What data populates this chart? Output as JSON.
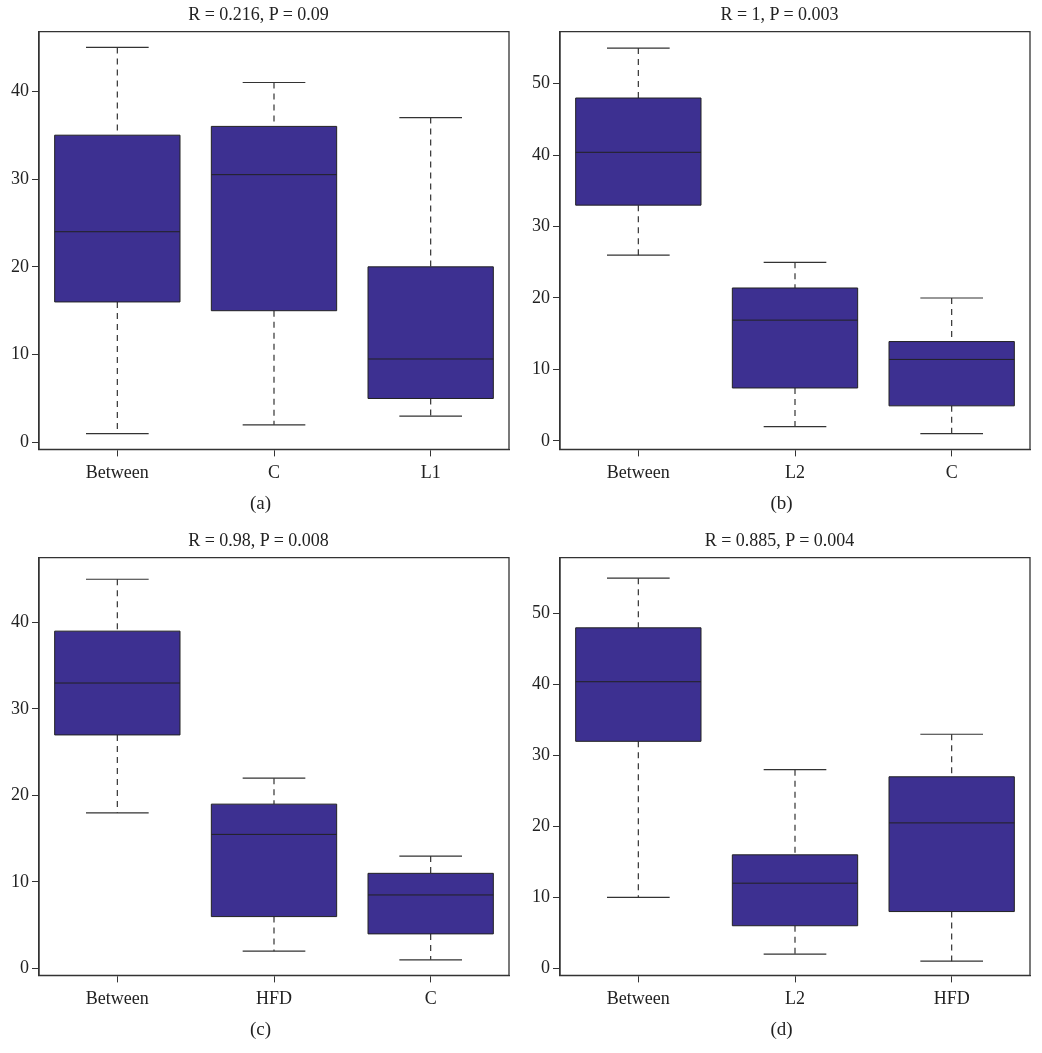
{
  "chart_data": [
    {
      "type": "box",
      "title": "R = 0.216, P = 0.09",
      "categories": [
        "Between",
        "C",
        "L1"
      ],
      "ylim": [
        -0.8,
        46.8
      ],
      "yticks": [
        0,
        10,
        20,
        30,
        40
      ],
      "grid": false,
      "legend": false,
      "annotations": [
        "(a)"
      ],
      "series": [
        {
          "color": "#3d3091",
          "boxes": [
            {
              "low": 1,
              "q1": 16,
              "median": 24,
              "q3": 35,
              "high": 45
            },
            {
              "low": 2,
              "q1": 15,
              "median": 30.5,
              "q3": 36,
              "high": 41
            },
            {
              "low": 3,
              "q1": 5,
              "median": 9.5,
              "q3": 20,
              "high": 37
            }
          ]
        }
      ]
    },
    {
      "type": "box",
      "title": "R = 1, P = 0.003",
      "categories": [
        "Between",
        "L2",
        "C"
      ],
      "ylim": [
        -1.2,
        57.3
      ],
      "yticks": [
        0,
        10,
        20,
        30,
        40,
        50
      ],
      "grid": false,
      "legend": false,
      "annotations": [
        "(b)"
      ],
      "series": [
        {
          "color": "#3d3091",
          "boxes": [
            {
              "low": 26,
              "q1": 33,
              "median": 40.4,
              "q3": 48,
              "high": 55
            },
            {
              "low": 2,
              "q1": 7.4,
              "median": 16.9,
              "q3": 21.4,
              "high": 25
            },
            {
              "low": 1,
              "q1": 4.9,
              "median": 11.4,
              "q3": 13.9,
              "high": 20
            }
          ]
        }
      ]
    },
    {
      "type": "box",
      "title": "R = 0.98, P = 0.008",
      "categories": [
        "Between",
        "HFD",
        "C"
      ],
      "ylim": [
        -0.8,
        47.5
      ],
      "yticks": [
        0,
        10,
        20,
        30,
        40
      ],
      "grid": false,
      "legend": false,
      "annotations": [
        "(c)"
      ],
      "series": [
        {
          "color": "#3d3091",
          "boxes": [
            {
              "low": 18,
              "q1": 27,
              "median": 33,
              "q3": 39,
              "high": 45
            },
            {
              "low": 2,
              "q1": 6,
              "median": 15.5,
              "q3": 19,
              "high": 22
            },
            {
              "low": 1,
              "q1": 4,
              "median": 8.5,
              "q3": 11,
              "high": 13
            }
          ]
        }
      ]
    },
    {
      "type": "box",
      "title": "R = 0.885, P = 0.004",
      "categories": [
        "Between",
        "L2",
        "HFD"
      ],
      "ylim": [
        -1,
        57.9
      ],
      "yticks": [
        0,
        10,
        20,
        30,
        40,
        50
      ],
      "grid": false,
      "legend": false,
      "annotations": [
        "(d)"
      ],
      "series": [
        {
          "color": "#3d3091",
          "boxes": [
            {
              "low": 10,
              "q1": 32,
              "median": 40.4,
              "q3": 48,
              "high": 55
            },
            {
              "low": 2,
              "q1": 6,
              "median": 12,
              "q3": 16,
              "high": 28
            },
            {
              "low": 1,
              "q1": 8,
              "median": 20.5,
              "q3": 27,
              "high": 33
            }
          ]
        }
      ]
    }
  ]
}
